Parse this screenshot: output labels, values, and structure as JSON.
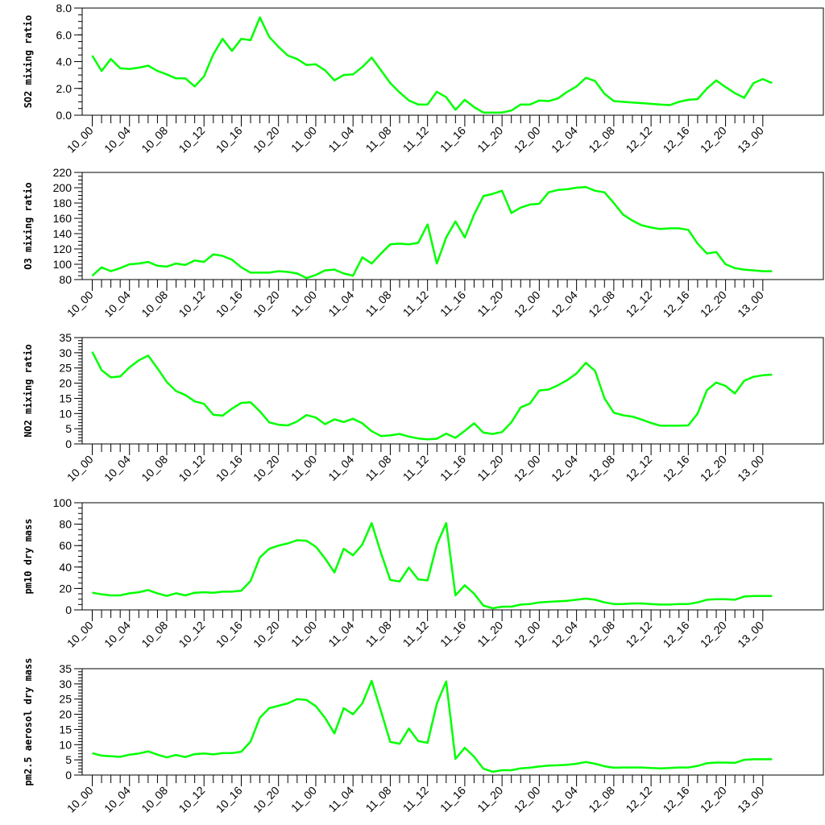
{
  "chart_data": [
    {
      "type": "line",
      "ylabel": "SO2 mixing ratio",
      "ylim": [
        0,
        8
      ],
      "yticks": [
        0,
        2,
        4,
        6,
        8
      ],
      "yticklabels": [
        "0.0",
        "2.0",
        "4.0",
        "6.0",
        "8.0"
      ],
      "yminor": 0.5,
      "series": [
        {
          "color": "#00ff00",
          "values": [
            4.45,
            3.3,
            4.2,
            3.5,
            3.45,
            3.55,
            3.7,
            3.3,
            3.05,
            2.75,
            2.75,
            2.15,
            2.9,
            4.55,
            5.7,
            4.8,
            5.7,
            5.6,
            7.3,
            5.85,
            5.1,
            4.45,
            4.2,
            3.75,
            3.8,
            3.35,
            2.6,
            3.0,
            3.05,
            3.6,
            4.3,
            3.35,
            2.4,
            1.7,
            1.1,
            0.8,
            0.8,
            1.75,
            1.35,
            0.4,
            1.15,
            0.6,
            0.2,
            0.2,
            0.2,
            0.35,
            0.8,
            0.8,
            1.1,
            1.05,
            1.25,
            1.75,
            2.15,
            2.8,
            2.55,
            1.6,
            1.05,
            1.0,
            0.95,
            0.9,
            0.85,
            0.8,
            0.75,
            1.0,
            1.15,
            1.2,
            2.0,
            2.6,
            2.1,
            1.65,
            1.3,
            2.4,
            2.7,
            2.4
          ]
        }
      ]
    },
    {
      "type": "line",
      "ylabel": "O3 mixing ratio",
      "ylim": [
        80,
        220
      ],
      "yticks": [
        80,
        100,
        120,
        140,
        160,
        180,
        200,
        220
      ],
      "yticklabels": [
        "80",
        "100",
        "120",
        "140",
        "160",
        "180",
        "200",
        "220"
      ],
      "yminor": 5,
      "series": [
        {
          "color": "#00ff00",
          "values": [
            85,
            96,
            91,
            95,
            100,
            101,
            103,
            98,
            97,
            101,
            99,
            105,
            103,
            113,
            111,
            106,
            96,
            89,
            89,
            89,
            91,
            90,
            88,
            82,
            86,
            92,
            93,
            88,
            85,
            109,
            101,
            114,
            126,
            127,
            126,
            128,
            152,
            101,
            135,
            156,
            135,
            165,
            189,
            192,
            196,
            167,
            174,
            178,
            179,
            194,
            197,
            198,
            200,
            201,
            196,
            194,
            180,
            165,
            157,
            151,
            148,
            146,
            147,
            147,
            145,
            127,
            114,
            116,
            100,
            95,
            93,
            92,
            91,
            91
          ]
        }
      ]
    },
    {
      "type": "line",
      "ylabel": "NO2 mixing ratio",
      "ylim": [
        0,
        35
      ],
      "yticks": [
        0,
        5,
        10,
        15,
        20,
        25,
        30,
        35
      ],
      "yticklabels": [
        "0",
        "5",
        "10",
        "15",
        "20",
        "25",
        "30",
        "35"
      ],
      "yminor": 1,
      "series": [
        {
          "color": "#00ff00",
          "values": [
            30.3,
            24.3,
            21.9,
            22.2,
            25.2,
            27.5,
            29.1,
            24.9,
            20.4,
            17.4,
            16.1,
            14.0,
            13.2,
            9.6,
            9.3,
            11.6,
            13.5,
            13.7,
            10.7,
            7.1,
            6.3,
            6.1,
            7.4,
            9.5,
            8.7,
            6.5,
            8.1,
            7.2,
            8.3,
            6.8,
            4.2,
            2.6,
            2.8,
            3.3,
            2.4,
            1.8,
            1.5,
            1.7,
            3.4,
            2.0,
            4.3,
            6.8,
            3.7,
            3.3,
            3.9,
            7.1,
            12.0,
            13.3,
            17.6,
            17.9,
            19.3,
            21.0,
            23.2,
            26.7,
            24.0,
            15.0,
            10.3,
            9.4,
            9.0,
            8.0,
            6.9,
            6.0,
            6.0,
            6.0,
            6.1,
            10.0,
            17.7,
            20.2,
            19.1,
            16.6,
            20.8,
            22.1,
            22.6,
            22.8
          ]
        }
      ]
    },
    {
      "type": "line",
      "ylabel": "pm10 dry mass",
      "ylim": [
        0,
        100
      ],
      "yticks": [
        0,
        20,
        40,
        60,
        80,
        100
      ],
      "yticklabels": [
        "0",
        "20",
        "40",
        "60",
        "80",
        "100"
      ],
      "yminor": 5,
      "series": [
        {
          "color": "#00ff00",
          "values": [
            16,
            14.5,
            13.5,
            13.5,
            15.5,
            16.5,
            18.5,
            15.5,
            13,
            15.5,
            13.5,
            16,
            16.5,
            16,
            17,
            17,
            18,
            27,
            49,
            57,
            60,
            62,
            65,
            64.5,
            59,
            48,
            35,
            57,
            51,
            61,
            81,
            53,
            28,
            26.5,
            39.5,
            28.5,
            27.5,
            61,
            81,
            13.5,
            23,
            15,
            4,
            1.5,
            3,
            3,
            5,
            5.5,
            7,
            7.5,
            8,
            8.5,
            9.5,
            10.5,
            9.5,
            7,
            5.5,
            5.5,
            6,
            6,
            5.5,
            5,
            5,
            5.5,
            5.5,
            7,
            9.5,
            10,
            10,
            9.5,
            12.5,
            13,
            13,
            13
          ]
        }
      ]
    },
    {
      "type": "line",
      "ylabel": "pm2.5 aerosol dry mass",
      "ylim": [
        0,
        35
      ],
      "yticks": [
        0,
        5,
        10,
        15,
        20,
        25,
        30,
        35
      ],
      "yticklabels": [
        "0",
        "5",
        "10",
        "15",
        "20",
        "25",
        "30",
        "35"
      ],
      "yminor": 1,
      "series": [
        {
          "color": "#00ff00",
          "values": [
            7.2,
            6.4,
            6.2,
            6.0,
            6.7,
            7.1,
            7.8,
            6.7,
            5.8,
            6.6,
            5.9,
            6.9,
            7.1,
            6.8,
            7.2,
            7.2,
            7.7,
            11.0,
            18.9,
            22.0,
            22.8,
            23.6,
            25.0,
            24.7,
            22.7,
            18.8,
            13.7,
            22.0,
            20.0,
            23.6,
            31.0,
            21.0,
            10.9,
            10.3,
            15.3,
            11.2,
            10.6,
            23.5,
            30.8,
            5.3,
            9.0,
            6.0,
            2.1,
            1.1,
            1.6,
            1.6,
            2.2,
            2.4,
            2.8,
            3.1,
            3.2,
            3.4,
            3.7,
            4.3,
            3.7,
            2.9,
            2.4,
            2.5,
            2.5,
            2.5,
            2.3,
            2.2,
            2.3,
            2.5,
            2.5,
            3.0,
            3.9,
            4.1,
            4.1,
            4.0,
            5.0,
            5.2,
            5.2,
            5.2
          ]
        }
      ]
    }
  ],
  "x_axis": {
    "n_points": 74,
    "ticklabels": [
      "10_00",
      "10_04",
      "10_08",
      "10_12",
      "10_16",
      "10_20",
      "11_00",
      "11_04",
      "11_08",
      "11_12",
      "11_16",
      "11_20",
      "12_00",
      "12_04",
      "12_08",
      "12_12",
      "12_16",
      "12_20",
      "13_00"
    ],
    "label_every": 4,
    "n_ticks": 73
  }
}
